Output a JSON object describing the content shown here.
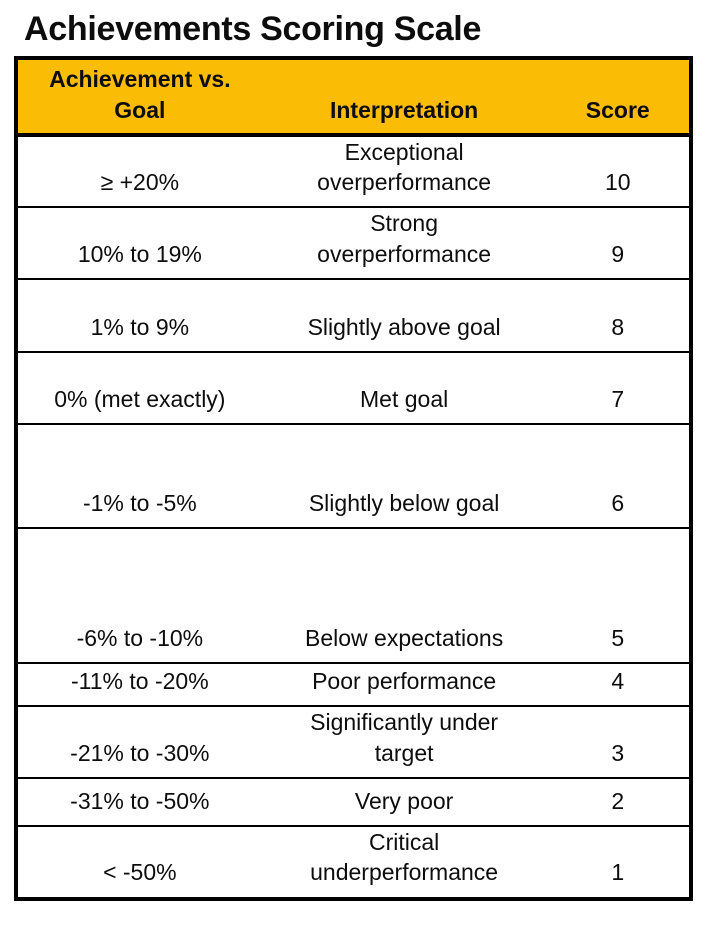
{
  "page": {
    "title": "Achievements Scoring Scale"
  },
  "colors": {
    "header_bg": "#FBBC05",
    "border": "#000000",
    "text": "#0D0D0D",
    "background": "#FFFFFF"
  },
  "table": {
    "header": {
      "col1_line1": "Achievement vs.",
      "col1_line2": "Goal",
      "col2": "Interpretation",
      "col3": "Score"
    },
    "rows": [
      {
        "range": "≥ +20%",
        "interpretation": "Exceptional overperformance",
        "score": "10"
      },
      {
        "range": "10% to 19%",
        "interpretation": "Strong overperformance",
        "score": "9"
      },
      {
        "range": "1% to 9%",
        "interpretation": "Slightly above goal",
        "score": "8"
      },
      {
        "range": "0% (met exactly)",
        "interpretation": "Met goal",
        "score": "7"
      },
      {
        "range": "-1% to -5%",
        "interpretation": "Slightly below goal",
        "score": "6"
      },
      {
        "range": "-6% to -10%",
        "interpretation": "Below expectations",
        "score": "5"
      },
      {
        "range": "-11% to -20%",
        "interpretation": "Poor performance",
        "score": "4"
      },
      {
        "range": "-21% to -30%",
        "interpretation": "Significantly under target",
        "score": "3"
      },
      {
        "range": "-31% to -50%",
        "interpretation": "Very poor",
        "score": "2"
      },
      {
        "range": "< -50%",
        "interpretation": "Critical underperformance",
        "score": "1"
      }
    ]
  }
}
